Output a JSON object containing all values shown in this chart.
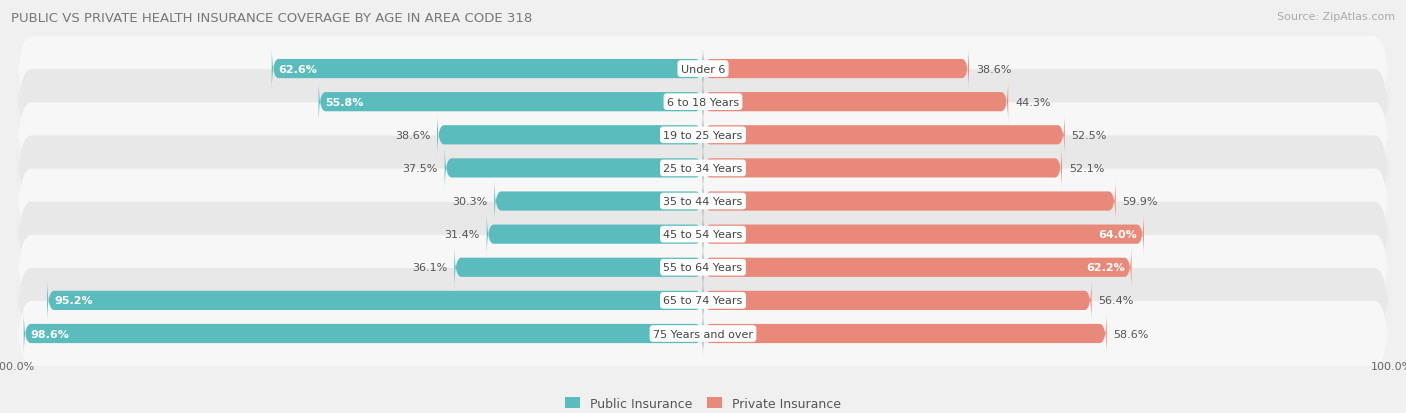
{
  "title": "PUBLIC VS PRIVATE HEALTH INSURANCE COVERAGE BY AGE IN AREA CODE 318",
  "source": "Source: ZipAtlas.com",
  "categories": [
    "Under 6",
    "6 to 18 Years",
    "19 to 25 Years",
    "25 to 34 Years",
    "35 to 44 Years",
    "45 to 54 Years",
    "55 to 64 Years",
    "65 to 74 Years",
    "75 Years and over"
  ],
  "public_values": [
    62.6,
    55.8,
    38.6,
    37.5,
    30.3,
    31.4,
    36.1,
    95.2,
    98.6
  ],
  "private_values": [
    38.6,
    44.3,
    52.5,
    52.1,
    59.9,
    64.0,
    62.2,
    56.4,
    58.6
  ],
  "public_color": "#5bbcbd",
  "private_color": "#e8897a",
  "bar_height": 0.58,
  "bg_color": "#f0f0f0",
  "row_bg_light": "#f7f7f7",
  "row_bg_dark": "#e8e8e8",
  "legend_public": "Public Insurance",
  "legend_private": "Private Insurance",
  "public_label_threshold": 50.0,
  "private_label_threshold": 60.0
}
